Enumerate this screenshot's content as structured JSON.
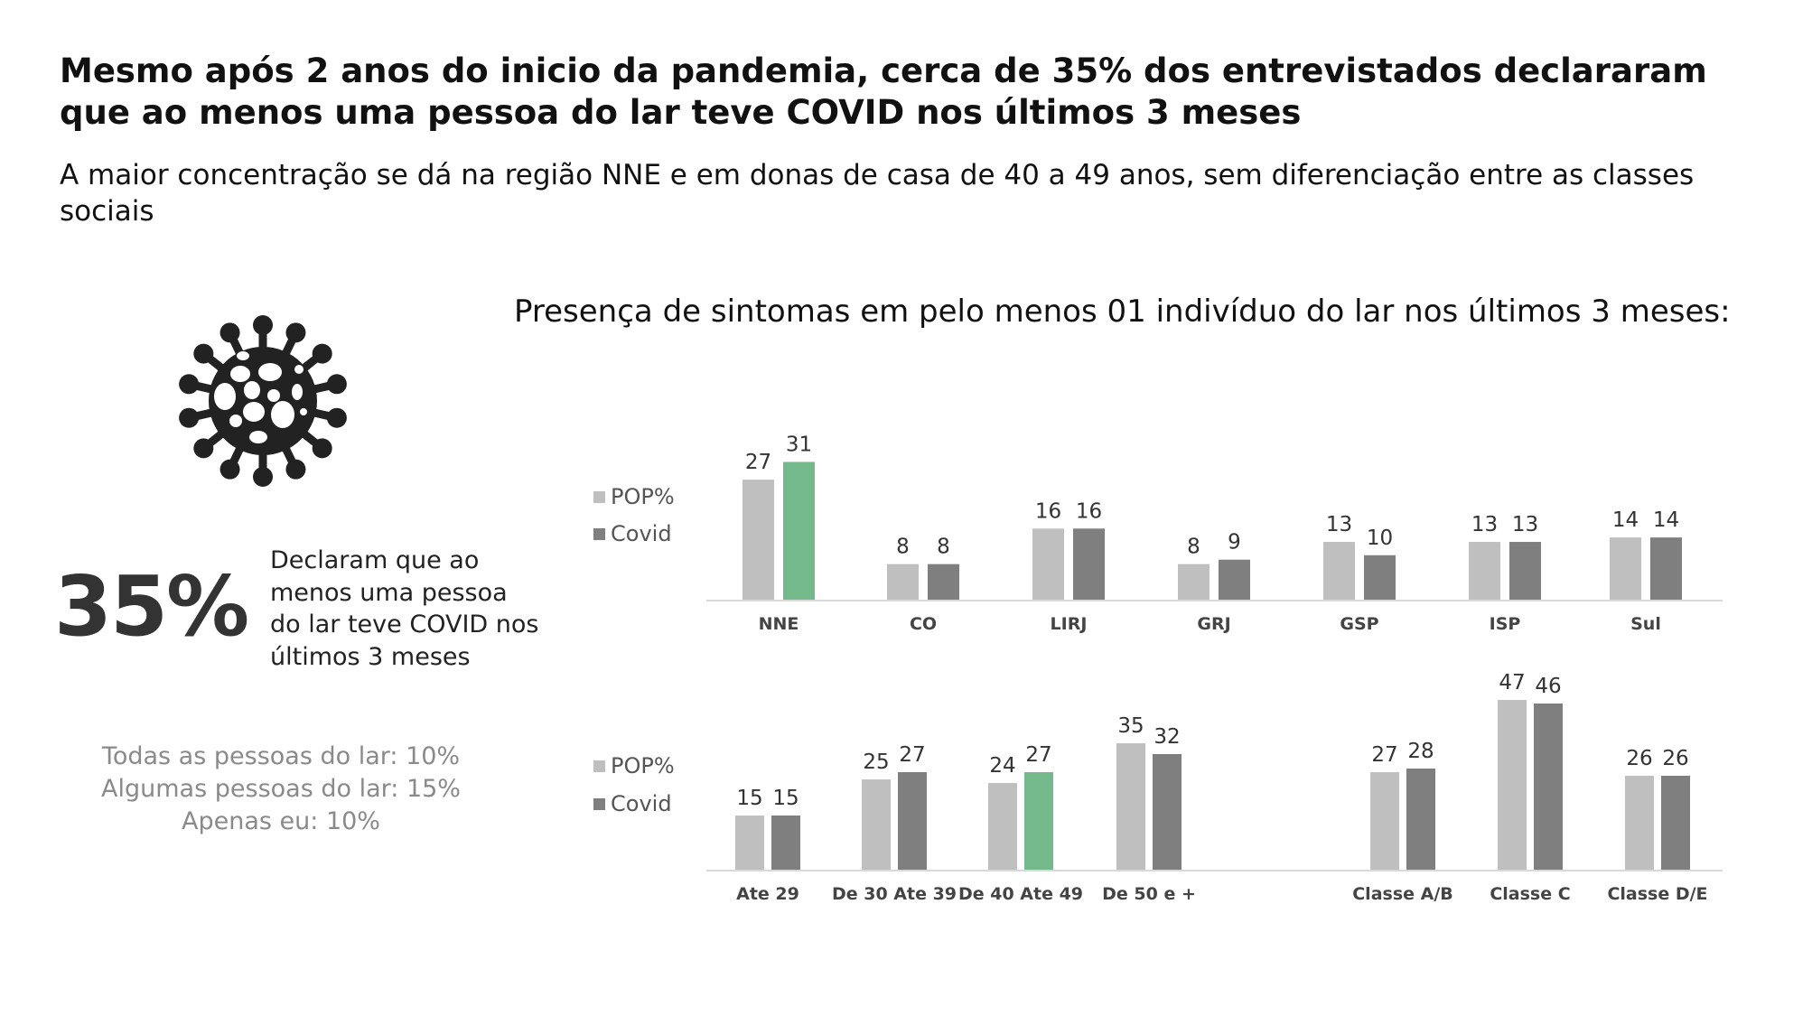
{
  "header": {
    "title": "Mesmo após 2 anos do inicio da pandemia, cerca de 35% dos entrevistados declararam que ao menos uma pessoa do lar teve COVID nos últimos 3 meses",
    "subtitle": "A maior concentração se dá na região NNE e em donas de casa de 40 a 49 anos, sem diferenciação entre as classes sociais"
  },
  "kpi": {
    "icon": "virus-icon",
    "value": "35%",
    "description": "Declaram que ao menos uma pessoa do lar teve COVID nos últimos 3 meses",
    "breakdown": [
      "Todas as pessoas do lar: 10%",
      "Algumas pessoas do lar: 15%",
      "Apenas eu: 10%"
    ]
  },
  "colors": {
    "pop": "#bfbfbf",
    "covid": "#7f7f7f",
    "highlight": "#74b98c",
    "axis": "#d9d9d9"
  },
  "chart_title": "Presença de sintomas em pelo menos 01 indivíduo do lar nos últimos 3 meses:",
  "chart_data": [
    {
      "type": "bar",
      "legend": "left",
      "categories": [
        "NNE",
        "CO",
        "LIRJ",
        "GRJ",
        "GSP",
        "ISP",
        "Sul"
      ],
      "series": [
        {
          "name": "POP%",
          "values": [
            27,
            8,
            16,
            8,
            13,
            13,
            14
          ]
        },
        {
          "name": "Covid",
          "values": [
            31,
            8,
            16,
            9,
            10,
            13,
            14
          ],
          "highlight_index": [
            0
          ]
        }
      ]
    },
    {
      "type": "bar",
      "legend": "left",
      "categories": [
        "Ate 29",
        "De 30 Ate 39",
        "De 40 Ate 49",
        "De 50 e +",
        "Classe A/B",
        "Classe C",
        "Classe D/E"
      ],
      "series": [
        {
          "name": "POP%",
          "values": [
            15,
            25,
            24,
            35,
            27,
            47,
            26
          ]
        },
        {
          "name": "Covid",
          "values": [
            15,
            27,
            27,
            32,
            28,
            46,
            26
          ],
          "highlight_index": [
            2
          ]
        }
      ]
    }
  ]
}
